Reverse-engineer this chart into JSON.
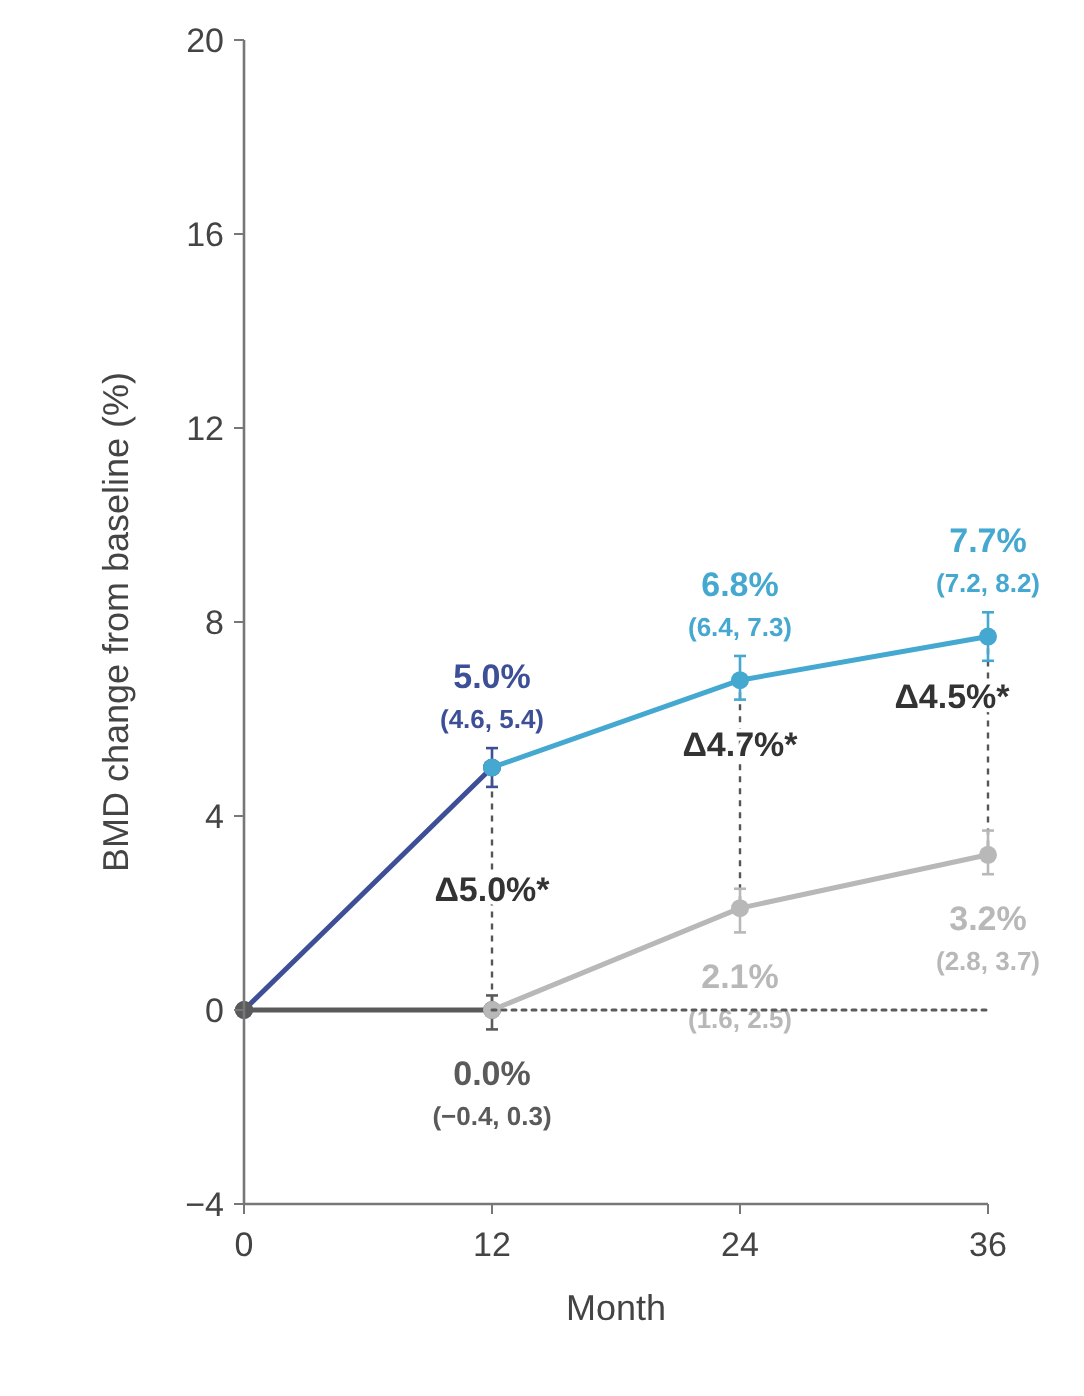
{
  "chart_data": {
    "type": "line",
    "xlabel": "Month",
    "ylabel": "BMD change from baseline (%)",
    "xlim": [
      0,
      36
    ],
    "xticks": [
      0,
      12,
      24,
      36
    ],
    "ylim": [
      -4,
      20
    ],
    "yticks": [
      -4,
      0,
      4,
      8,
      12,
      16,
      20
    ],
    "marker": "circle",
    "series": [
      {
        "color": "#3d4f96",
        "x": [
          0,
          12
        ],
        "values": [
          0,
          5.0
        ],
        "errors": [
          null,
          [
            4.6,
            5.4
          ]
        ],
        "value_labels": [
          null,
          "5.0%\n(4.6, 5.4)"
        ]
      },
      {
        "color": "#45a8d0",
        "x": [
          12,
          24,
          36
        ],
        "values": [
          5.0,
          6.8,
          7.7
        ],
        "errors": [
          null,
          [
            6.4,
            7.3
          ],
          [
            7.2,
            8.2
          ]
        ],
        "value_labels": [
          null,
          "6.8%\n(6.4, 7.3)",
          "7.7%\n(7.2, 8.2)"
        ]
      },
      {
        "color": "#5a5a5a",
        "x": [
          0,
          12
        ],
        "values": [
          0,
          0.0
        ],
        "errors": [
          null,
          [
            -0.4,
            0.3
          ]
        ],
        "value_labels": [
          null,
          "0.0%\n(−0.4, 0.3)"
        ]
      },
      {
        "color": "#b8b8b8",
        "x": [
          12,
          24,
          36
        ],
        "values": [
          0,
          2.1,
          3.2
        ],
        "errors": [
          null,
          [
            1.6,
            2.5
          ],
          [
            2.8,
            3.7
          ]
        ],
        "value_labels": [
          null,
          "2.1%\n(1.6, 2.5)",
          "3.2%\n(2.8, 3.7)"
        ]
      },
      {
        "type": "line",
        "color": "#5a5a5a",
        "line_style": "dotted",
        "marker": "none",
        "x": [
          12,
          36
        ],
        "values": [
          0,
          0
        ]
      }
    ],
    "annotations": [
      "Δ5.0%*",
      "Δ4.7%*",
      "Δ4.5%*"
    ]
  }
}
